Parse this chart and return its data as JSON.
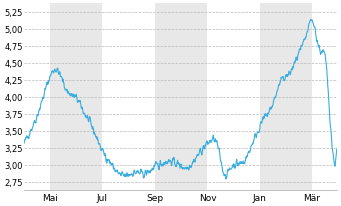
{
  "ylim": [
    2.625,
    5.375
  ],
  "yticks": [
    2.75,
    3.0,
    3.25,
    3.5,
    3.75,
    4.0,
    4.25,
    4.5,
    4.75,
    5.0,
    5.25
  ],
  "ytick_labels": [
    "2,75",
    "3,00",
    "3,25",
    "3,50",
    "3,75",
    "4,00",
    "4,25",
    "4,50",
    "4,75",
    "5,00",
    "5,25"
  ],
  "x_tick_labels": [
    "Mai",
    "Jul",
    "Sep",
    "Nov",
    "Jan",
    "Mär"
  ],
  "line_color": "#3aade0",
  "line_width": 0.8,
  "background_color": "#ffffff",
  "grid_color": "#bbbbbb",
  "shade_color": "#e8e8e8",
  "control_x": [
    0,
    8,
    18,
    28,
    38,
    50,
    60,
    70,
    80,
    90,
    100,
    110,
    120,
    130,
    140,
    150,
    160,
    170,
    180,
    190,
    200,
    210,
    218,
    225,
    233,
    242,
    250,
    258,
    265,
    272,
    280,
    288,
    295,
    302,
    308,
    315,
    320,
    326,
    331,
    336,
    341,
    346,
    352,
    358,
    365
  ],
  "control_y": [
    3.35,
    3.55,
    3.85,
    4.25,
    4.42,
    4.1,
    4.0,
    3.78,
    3.55,
    3.25,
    3.05,
    2.88,
    2.85,
    2.9,
    2.88,
    2.95,
    3.02,
    3.05,
    3.0,
    2.95,
    3.08,
    3.25,
    3.35,
    3.3,
    2.88,
    2.95,
    3.0,
    3.05,
    3.25,
    3.45,
    3.65,
    3.8,
    4.05,
    4.25,
    4.3,
    4.45,
    4.6,
    4.75,
    4.95,
    5.1,
    4.88,
    4.65,
    4.5,
    3.5,
    3.2
  ],
  "noise_seed": 42,
  "noise_scale": 0.055,
  "n_points": 1000
}
